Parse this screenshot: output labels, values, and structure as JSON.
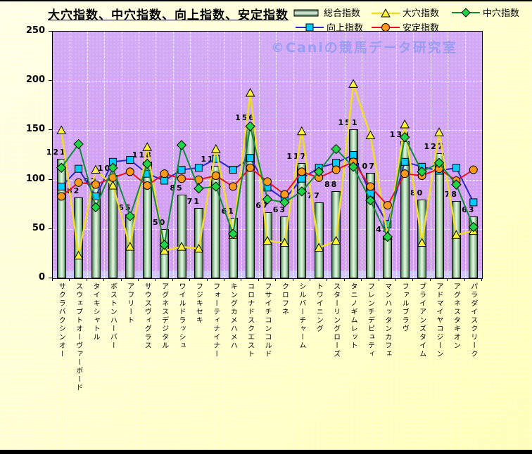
{
  "title": "大穴指数、中穴指数、向上指数、安定指数",
  "watermark": "©Caniの競馬データ研究室",
  "colors": {
    "page_bg": "#FFFFC8",
    "plot_bg": "#C99CEF",
    "floor_band": "#CFCEFA",
    "bar_fill_light": "#E8F8E6",
    "bar_fill_dark": "#3E6B4A",
    "line_up": "#2929C8",
    "marker_up": "#00CCFF",
    "line_ooana": "#F0DE26",
    "marker_ooana": "#FFF23C",
    "line_antei": "#E81123",
    "marker_antei": "#FF9919",
    "line_chuana": "#0E8C3A",
    "marker_chuana": "#22D447"
  },
  "chart_data": {
    "type": "bar",
    "subtype": "bar-line-combo",
    "title": "大穴指数、中穴指数、向上指数、安定指数",
    "xlabel": "",
    "ylabel": "",
    "ylim": [
      0,
      250
    ],
    "yticks": [
      0,
      50,
      100,
      150,
      200,
      250
    ],
    "grid": true,
    "legend_position": "top-right",
    "bar_labels": true,
    "categories": [
      "サクラバクシンオー",
      "スウェプトオーヴァーボード",
      "タイキシャトル",
      "ボストンハーバー",
      "アフリート",
      "サウスヴィグラス",
      "アグネスデジタル",
      "ワイルドラッシュ",
      "フジキセキ",
      "フォーティナイナー",
      "キングカメハメハ",
      "コロナドスクエスト",
      "フサイチコンコルド",
      "クロフネ",
      "シルバーチャーム",
      "トワイニング",
      "スターリングローズ",
      "タニノギムレット",
      "フレンチデピュティ",
      "マンハッタンカフェ",
      "ファルブラヴ",
      "ブライアンズタイム",
      "アドマイヤコジーン",
      "アグネスタキオン",
      "パラダイスクリーク"
    ],
    "series": [
      {
        "name": "総合指数",
        "type": "bar",
        "marker": "bar-swatch",
        "values": [
          121,
          82,
          92,
          105,
          65,
          118,
          50,
          85,
          71,
          114,
          61,
          156,
          67,
          63,
          117,
          77,
          88,
          151,
          107,
          43,
          139,
          80,
          127,
          78,
          63
        ]
      },
      {
        "name": "向上指数",
        "type": "line",
        "marker": "square",
        "values": [
          93,
          111,
          83,
          118,
          120,
          106,
          99,
          110,
          112,
          121,
          110,
          122,
          92,
          80,
          101,
          112,
          117,
          125,
          86,
          55,
          118,
          113,
          109,
          112,
          77
        ]
      },
      {
        "name": "大穴指数",
        "type": "line",
        "marker": "triangle",
        "values": [
          150,
          23,
          110,
          94,
          32,
          133,
          28,
          32,
          30,
          131,
          44,
          188,
          38,
          36,
          149,
          31,
          38,
          197,
          145,
          43,
          156,
          36,
          148,
          44,
          48
        ]
      },
      {
        "name": "安定指数",
        "type": "line",
        "marker": "circle",
        "values": [
          83,
          97,
          95,
          102,
          108,
          94,
          106,
          101,
          100,
          104,
          93,
          112,
          98,
          85,
          108,
          102,
          110,
          118,
          93,
          74,
          106,
          104,
          111,
          99,
          110
        ]
      },
      {
        "name": "中穴指数",
        "type": "line",
        "marker": "diamond",
        "values": [
          112,
          136,
          72,
          112,
          63,
          116,
          34,
          135,
          91,
          93,
          45,
          154,
          80,
          77,
          88,
          108,
          131,
          113,
          79,
          42,
          143,
          108,
          117,
          95,
          52
        ]
      }
    ]
  }
}
